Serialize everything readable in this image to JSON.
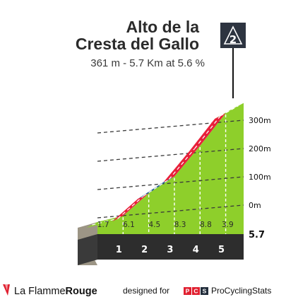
{
  "climb": {
    "title_line1": "Alto de la",
    "title_line2": "Cresta del Gallo",
    "subtitle": "361 m - 5.7 Km at 5.6 %",
    "category": "2"
  },
  "chart_data": {
    "type": "area",
    "title": "Alto de la Cresta del Gallo",
    "subtitle": "361 m - 5.7 Km at 5.6 %",
    "xlabel": "",
    "ylabel": "",
    "y_unit": "m",
    "y_ticks": [
      {
        "value": 0,
        "label": "0m"
      },
      {
        "value": 100,
        "label": "100m"
      },
      {
        "value": 200,
        "label": "200m"
      },
      {
        "value": 300,
        "label": "300m"
      }
    ],
    "ylim": [
      -60,
      361
    ],
    "xlim": [
      0,
      5.7
    ],
    "total_distance_label": "5.7",
    "km_markers": [
      1,
      2,
      3,
      4,
      5
    ],
    "gridlines": true,
    "segments": [
      {
        "start": 0,
        "end": 1,
        "gradient": 1.7,
        "gradient_label": "1.7",
        "color": "#8ecf2b"
      },
      {
        "start": 1,
        "end": 2,
        "gradient": 6.1,
        "gradient_label": "6.1",
        "color": "#e8203a"
      },
      {
        "start": 2,
        "end": 3,
        "gradient": 4.5,
        "gradient_label": "4.5",
        "color": "#1f5f8b"
      },
      {
        "start": 3,
        "end": 4,
        "gradient": 8.3,
        "gradient_label": "8.3",
        "color": "#e8203a"
      },
      {
        "start": 4,
        "end": 5,
        "gradient": 8.8,
        "gradient_label": "8.8",
        "color": "#e8203a"
      },
      {
        "start": 5,
        "end": 5.7,
        "gradient": 3.9,
        "gradient_label": "3.9",
        "color": "#8ecf2b"
      }
    ],
    "colors": {
      "fill": "#8ecf2b",
      "red": "#e8203a",
      "blue": "#1f5f8b",
      "green": "#8ecf2b",
      "km_bar": "#2d2d2d",
      "side": "#9c9585"
    }
  },
  "footer": {
    "brand_regular": "La Flamme",
    "brand_bold": "Rouge",
    "designed_for": "designed for",
    "pcs_letters": [
      "P",
      "C",
      "S"
    ],
    "pcs_name": "ProCyclingStats"
  }
}
